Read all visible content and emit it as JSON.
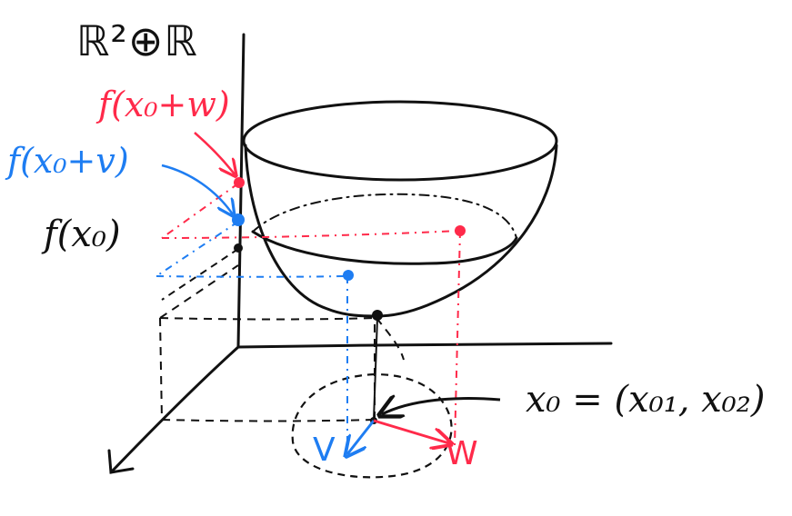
{
  "labels": {
    "space": "ℝ²⊕ℝ",
    "f_x0_plus_w": "f(x₀+w)",
    "f_x0_plus_v": "f(x₀+v)",
    "f_x0": "f(x₀)",
    "x0_def": "x₀ = (x₀₁, x₀₂)",
    "v": "V",
    "w": "W"
  },
  "colors": {
    "ink": "#111111",
    "red": "#ff2a4a",
    "blue": "#1e7df2"
  }
}
